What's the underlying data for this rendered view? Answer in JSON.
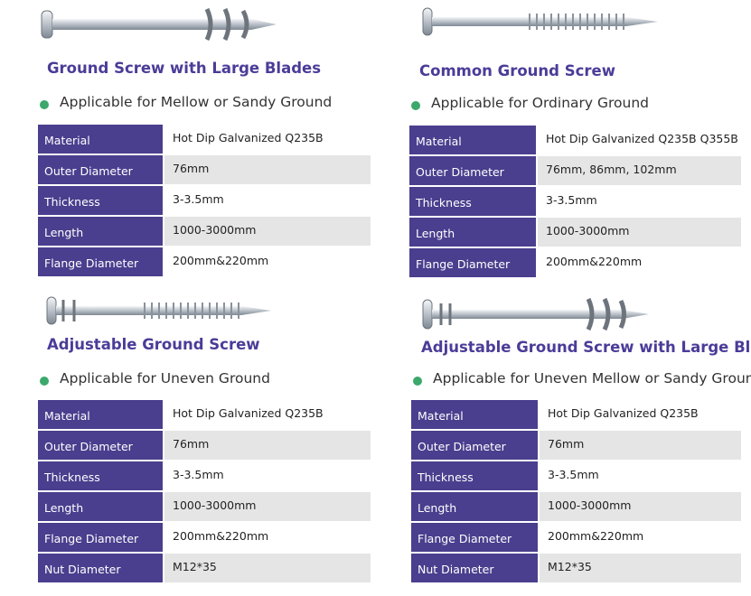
{
  "products": [
    {
      "title": "Ground Screw with Large Blades",
      "applicability": "Applicable for Mellow or Sandy Ground",
      "specs": [
        [
          "Material",
          "Hot Dip Galvanized Q235B"
        ],
        [
          "Outer Diameter",
          "76mm"
        ],
        [
          "Thickness",
          "3-3.5mm"
        ],
        [
          "Length",
          "1000-3000mm"
        ],
        [
          "Flange Diameter",
          "200mm&220mm"
        ]
      ]
    },
    {
      "title": "Common Ground Screw",
      "applicability": "Applicable for Ordinary Ground",
      "specs": [
        [
          "Material",
          "Hot Dip Galvanized Q235B Q355B"
        ],
        [
          "Outer Diameter",
          "76mm, 86mm, 102mm"
        ],
        [
          "Thickness",
          "3-3.5mm"
        ],
        [
          "Length",
          "1000-3000mm"
        ],
        [
          "Flange Diameter",
          "200mm&220mm"
        ]
      ]
    },
    {
      "title": "Adjustable Ground Screw",
      "applicability": "Applicable for Uneven Ground",
      "specs": [
        [
          "Material",
          "Hot Dip Galvanized Q235B"
        ],
        [
          "Outer Diameter",
          "76mm"
        ],
        [
          "Thickness",
          "3-3.5mm"
        ],
        [
          "Length",
          "1000-3000mm"
        ],
        [
          "Flange Diameter",
          "200mm&220mm"
        ],
        [
          "Nut Diameter",
          "M12*35"
        ]
      ]
    },
    {
      "title": "Adjustable Ground Screw with Large Blades",
      "applicability": "Applicable for Uneven Mellow or Sandy Ground",
      "specs": [
        [
          "Material",
          "Hot Dip Galvanized Q235B"
        ],
        [
          "Outer Diameter",
          "76mm"
        ],
        [
          "Thickness",
          "3-3.5mm"
        ],
        [
          "Length",
          "1000-3000mm"
        ],
        [
          "Flange Diameter",
          "200mm&220mm"
        ],
        [
          "Nut Diameter",
          "M12*35"
        ]
      ]
    }
  ]
}
